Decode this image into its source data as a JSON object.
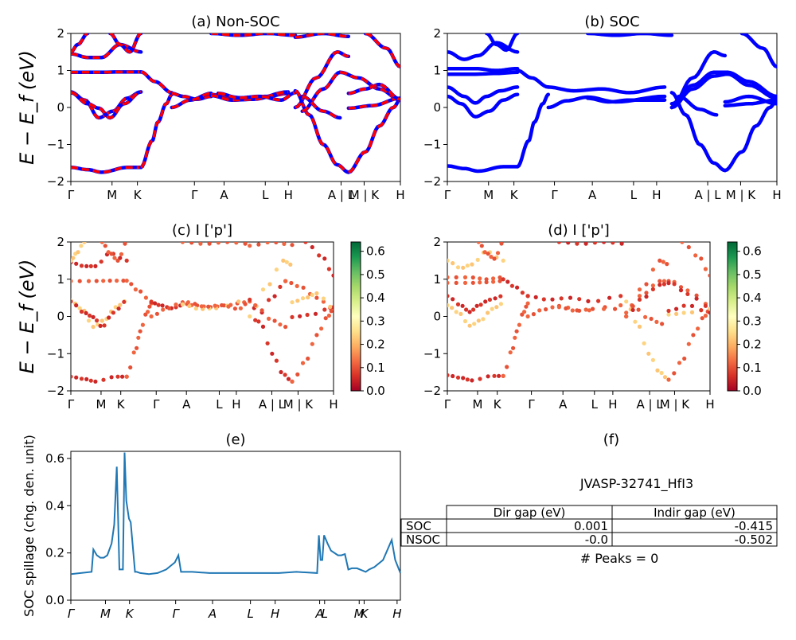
{
  "chart_data": [
    {
      "id": "a",
      "type": "line",
      "title": "(a) Non-SOC",
      "ylabel": "E − E_f (eV)",
      "ylim": [
        -2,
        2
      ],
      "yticks": [
        "−2",
        "−1",
        "0",
        "1",
        "2"
      ],
      "xticks": [
        "Γ",
        "M",
        "K",
        "Γ",
        "A",
        "L",
        "H",
        "A | L",
        "M | K",
        "H"
      ],
      "series_colors": [
        "#0000ff",
        "#ff0000"
      ],
      "bands": [
        {
          "x": [
            0,
            0.12,
            0.22,
            0.4,
            0.5
          ],
          "y": [
            -1.62,
            -1.68,
            -1.75,
            -1.62,
            -1.62
          ]
        },
        {
          "x": [
            0.5,
            0.58,
            0.62,
            0.68,
            0.72
          ],
          "y": [
            -1.62,
            -0.9,
            -0.4,
            0.1,
            0.35
          ]
        },
        {
          "x": [
            0,
            0.1,
            0.2,
            0.3,
            0.4,
            0.5
          ],
          "y": [
            0.42,
            0.2,
            -0.28,
            -0.1,
            0.25,
            0.42
          ]
        },
        {
          "x": [
            0,
            0.12,
            0.2,
            0.28,
            0.38,
            0.5
          ],
          "y": [
            0.4,
            0.1,
            -0.02,
            -0.28,
            0.1,
            0.42
          ]
        },
        {
          "x": [
            0,
            0.2,
            0.35,
            0.5
          ],
          "y": [
            0.95,
            0.95,
            0.96,
            0.96
          ]
        },
        {
          "x": [
            0.5,
            0.6,
            0.72
          ],
          "y": [
            0.96,
            0.7,
            0.4
          ]
        },
        {
          "x": [
            0,
            0.12,
            0.22,
            0.35,
            0.5
          ],
          "y": [
            1.45,
            1.35,
            1.35,
            1.7,
            1.5
          ]
        },
        {
          "x": [
            0,
            0.05,
            0.12
          ],
          "y": [
            1.5,
            1.7,
            2.0
          ]
        },
        {
          "x": [
            0.28,
            0.35,
            0.42,
            0.5
          ],
          "y": [
            2.0,
            1.7,
            1.5,
            2.0
          ]
        },
        {
          "x": [
            0.72,
            0.8,
            0.9,
            1.0
          ],
          "y": [
            0.38,
            0.3,
            0.22,
            0.3
          ]
        },
        {
          "x": [
            0.72,
            0.85,
            1.0
          ],
          "y": [
            0.0,
            0.2,
            0.38
          ]
        },
        {
          "x": [
            1.0,
            1.1,
            1.25,
            1.4,
            1.55
          ],
          "y": [
            0.35,
            0.3,
            0.25,
            0.3,
            0.38
          ]
        },
        {
          "x": [
            1.0,
            1.15,
            1.3,
            1.55
          ],
          "y": [
            0.32,
            0.2,
            0.22,
            0.42
          ]
        },
        {
          "x": [
            1.05,
            1.2,
            1.35,
            1.5,
            1.6
          ],
          "y": [
            0.38,
            0.26,
            0.3,
            0.2,
            0.4
          ]
        },
        {
          "x": [
            1.0,
            1.2,
            1.4,
            1.6
          ],
          "y": [
            2.0,
            1.95,
            2.0,
            1.95
          ]
        },
        {
          "x": [
            1.6,
            1.7,
            1.8,
            1.9,
            1.98
          ],
          "y": [
            0.45,
            -0.2,
            -1.0,
            -1.55,
            -1.75
          ]
        },
        {
          "x": [
            1.98,
            2.1,
            2.2,
            2.3,
            2.35
          ],
          "y": [
            -1.75,
            -1.2,
            -0.5,
            0.0,
            0.22
          ]
        },
        {
          "x": [
            1.6,
            1.75,
            1.9,
            1.98
          ],
          "y": [
            0.0,
            0.8,
            1.5,
            1.38
          ]
        },
        {
          "x": [
            1.65,
            1.8,
            1.92
          ],
          "y": [
            -0.1,
            0.5,
            0.95
          ]
        },
        {
          "x": [
            1.92,
            2.05,
            2.2,
            2.35
          ],
          "y": [
            0.95,
            0.8,
            0.5,
            0.2
          ]
        },
        {
          "x": [
            1.65,
            1.8,
            1.92
          ],
          "y": [
            0.3,
            -0.1,
            -0.28
          ]
        },
        {
          "x": [
            1.98,
            2.15,
            2.35
          ],
          "y": [
            -0.02,
            0.05,
            0.25
          ]
        },
        {
          "x": [
            1.98,
            2.1,
            2.2,
            2.35
          ],
          "y": [
            0.38,
            0.5,
            0.62,
            0.22
          ]
        },
        {
          "x": [
            1.6,
            1.8,
            1.98
          ],
          "y": [
            1.9,
            2.0,
            1.92
          ]
        },
        {
          "x": [
            2.1,
            2.25,
            2.35
          ],
          "y": [
            2.0,
            1.6,
            1.1
          ]
        }
      ]
    },
    {
      "id": "b",
      "type": "line",
      "title": "(b) SOC",
      "ylim": [
        -2,
        2
      ],
      "yticks": [
        "−2",
        "−1",
        "0",
        "1",
        "2"
      ],
      "xticks": [
        "Γ",
        "M",
        "K",
        "Γ",
        "A",
        "L",
        "H",
        "A | L",
        "M | K",
        "H"
      ],
      "series_colors": [
        "#0000ff"
      ],
      "bands": [
        {
          "x": [
            0,
            0.12,
            0.22,
            0.4,
            0.5
          ],
          "y": [
            -1.58,
            -1.65,
            -1.72,
            -1.6,
            -1.6
          ]
        },
        {
          "x": [
            0.5,
            0.58,
            0.62,
            0.68,
            0.72
          ],
          "y": [
            -1.6,
            -0.9,
            -0.4,
            0.1,
            0.35
          ]
        },
        {
          "x": [
            0,
            0.1,
            0.2,
            0.3,
            0.4,
            0.5
          ],
          "y": [
            0.3,
            0.1,
            -0.25,
            -0.1,
            0.2,
            0.35
          ]
        },
        {
          "x": [
            0,
            0.12,
            0.2,
            0.28,
            0.38,
            0.5
          ],
          "y": [
            0.55,
            0.3,
            0.12,
            0.3,
            0.45,
            0.55
          ]
        },
        {
          "x": [
            0,
            0.2,
            0.35,
            0.5
          ],
          "y": [
            1.05,
            1.05,
            1.0,
            1.05
          ]
        },
        {
          "x": [
            0,
            0.2,
            0.35,
            0.5
          ],
          "y": [
            0.9,
            0.9,
            0.92,
            0.95
          ]
        },
        {
          "x": [
            0.5,
            0.6,
            0.72
          ],
          "y": [
            1.0,
            0.8,
            0.55
          ]
        },
        {
          "x": [
            0,
            0.12,
            0.22,
            0.35,
            0.5
          ],
          "y": [
            1.5,
            1.3,
            1.4,
            1.75,
            1.5
          ]
        },
        {
          "x": [
            0.28,
            0.35,
            0.42,
            0.5
          ],
          "y": [
            2.0,
            1.7,
            1.55,
            2.0
          ]
        },
        {
          "x": [
            0.72,
            0.9,
            1.1,
            1.3,
            1.55
          ],
          "y": [
            0.55,
            0.45,
            0.5,
            0.4,
            0.55
          ]
        },
        {
          "x": [
            0.72,
            0.85,
            1.0,
            1.2,
            1.55
          ],
          "y": [
            0.0,
            0.18,
            0.28,
            0.15,
            0.3
          ]
        },
        {
          "x": [
            1.0,
            1.15,
            1.3,
            1.55
          ],
          "y": [
            0.25,
            0.15,
            0.2,
            0.2
          ]
        },
        {
          "x": [
            1.6,
            1.7,
            1.8,
            1.9,
            1.98
          ],
          "y": [
            0.4,
            -0.2,
            -1.0,
            -1.5,
            -1.7
          ]
        },
        {
          "x": [
            1.98,
            2.1,
            2.2,
            2.3,
            2.35
          ],
          "y": [
            -1.7,
            -1.2,
            -0.5,
            0.0,
            0.2
          ]
        },
        {
          "x": [
            1.6,
            1.75,
            1.9,
            2.0,
            2.15,
            2.35
          ],
          "y": [
            0.1,
            0.6,
            0.95,
            0.95,
            0.7,
            0.3
          ]
        },
        {
          "x": [
            1.6,
            1.75,
            1.9,
            2.0,
            2.15,
            2.35
          ],
          "y": [
            0.0,
            0.5,
            0.85,
            0.9,
            0.6,
            0.25
          ]
        },
        {
          "x": [
            1.65,
            1.8,
            1.92
          ],
          "y": [
            0.3,
            -0.05,
            -0.2
          ]
        },
        {
          "x": [
            1.98,
            2.15,
            2.35
          ],
          "y": [
            0.05,
            0.1,
            0.2
          ]
        },
        {
          "x": [
            1.98,
            2.15,
            2.35
          ],
          "y": [
            0.15,
            0.3,
            0.1
          ]
        },
        {
          "x": [
            1.6,
            1.75,
            1.9,
            1.98
          ],
          "y": [
            0.0,
            0.8,
            1.5,
            1.4
          ]
        },
        {
          "x": [
            2.1,
            2.25,
            2.35
          ],
          "y": [
            2.0,
            1.6,
            1.1
          ]
        },
        {
          "x": [
            1.0,
            1.2,
            1.4,
            1.6
          ],
          "y": [
            2.0,
            1.95,
            2.0,
            1.95
          ]
        }
      ]
    },
    {
      "id": "c",
      "type": "scatter",
      "title": "(c)  I ['p']",
      "ylabel": "E − E_f (eV)",
      "ylim": [
        -2,
        2
      ],
      "yticks": [
        "−2",
        "−1",
        "0",
        "1",
        "2"
      ],
      "xticks": [
        "Γ",
        "M",
        "K",
        "Γ",
        "A",
        "L",
        "H",
        "A | L",
        "M | K",
        "H"
      ],
      "colorbar": {
        "ticks": [
          "0.0",
          "0.1",
          "0.2",
          "0.3",
          "0.4",
          "0.5",
          "0.6"
        ],
        "range": [
          0,
          0.64
        ]
      }
    },
    {
      "id": "d",
      "type": "scatter",
      "title": "(d) I ['p']",
      "ylim": [
        -2,
        2
      ],
      "yticks": [
        "−2",
        "−1",
        "0",
        "1",
        "2"
      ],
      "xticks": [
        "Γ",
        "M",
        "K",
        "Γ",
        "A",
        "L",
        "H",
        "A | L",
        "M | K",
        "H"
      ],
      "colorbar": {
        "ticks": [
          "0.0",
          "0.1",
          "0.2",
          "0.3",
          "0.4",
          "0.5",
          "0.6"
        ],
        "range": [
          0,
          0.64
        ]
      }
    },
    {
      "id": "e",
      "type": "line",
      "title": "(e)",
      "ylabel": "SOC spillage (chg. den. unit)",
      "ylim": [
        0,
        0.63
      ],
      "yticks": [
        "0.0",
        "0.2",
        "0.4",
        "0.6"
      ],
      "xticks": [
        "Γ",
        "M",
        "K",
        "Γ",
        "A",
        "L",
        "H",
        "A",
        "L",
        "M",
        "K",
        "H"
      ],
      "color": "#1f77b4",
      "x": [
        0,
        0.12,
        0.13,
        0.15,
        0.17,
        0.19,
        0.21,
        0.235,
        0.25,
        0.265,
        0.28,
        0.3,
        0.31,
        0.32,
        0.335,
        0.345,
        0.37,
        0.38,
        0.4,
        0.45,
        0.5,
        0.55,
        0.6,
        0.62,
        0.635,
        0.645,
        0.655,
        0.7,
        0.8,
        0.9,
        1.0,
        1.1,
        1.2,
        1.3,
        1.42,
        1.43,
        1.44,
        1.45,
        1.46,
        1.48,
        1.5,
        1.54,
        1.56,
        1.58,
        1.6,
        1.62,
        1.65,
        1.7,
        1.72,
        1.75,
        1.8,
        1.85,
        1.87,
        1.9
      ],
      "y": [
        0.11,
        0.12,
        0.215,
        0.19,
        0.18,
        0.18,
        0.19,
        0.24,
        0.32,
        0.565,
        0.13,
        0.13,
        0.625,
        0.42,
        0.345,
        0.33,
        0.12,
        0.12,
        0.115,
        0.11,
        0.115,
        0.13,
        0.16,
        0.19,
        0.12,
        0.12,
        0.12,
        0.12,
        0.115,
        0.115,
        0.115,
        0.115,
        0.115,
        0.12,
        0.115,
        0.275,
        0.17,
        0.17,
        0.275,
        0.24,
        0.21,
        0.19,
        0.19,
        0.195,
        0.13,
        0.135,
        0.135,
        0.12,
        0.13,
        0.14,
        0.17,
        0.255,
        0.17,
        0.115
      ]
    }
  ],
  "panel_f": {
    "title": "(f)",
    "material": "JVASP-32741_HfI3",
    "table": {
      "headers": [
        "",
        "Dir gap (eV)",
        "Indir gap (eV)"
      ],
      "rows": [
        [
          "SOC",
          "0.001",
          "-0.415"
        ],
        [
          "NSOC",
          "-0.0",
          "-0.502"
        ]
      ]
    },
    "peaks": "# Peaks = 0"
  }
}
